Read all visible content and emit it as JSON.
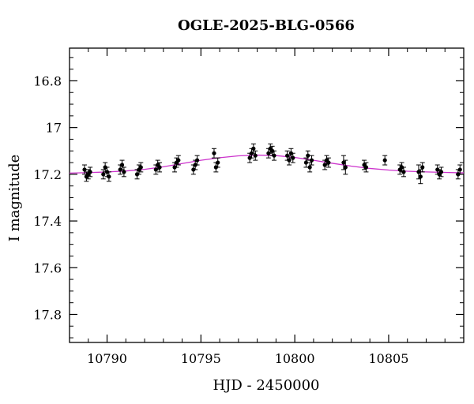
{
  "chart_data": {
    "type": "scatter",
    "title": "OGLE-2025-BLG-0566",
    "xlabel": "HJD - 2450000",
    "ylabel": "I magnitude",
    "xlim": [
      10788,
      10809
    ],
    "ylim": [
      17.92,
      16.66
    ],
    "y_inverted": true,
    "grid": false,
    "x_ticks": [
      10790,
      10795,
      10800,
      10805
    ],
    "x_tick_labels": [
      "10790",
      "10795",
      "10800",
      "10805"
    ],
    "y_ticks": [
      16.8,
      17.0,
      17.2,
      17.4,
      17.6,
      17.8
    ],
    "y_tick_labels": [
      "16.8",
      "17",
      "17.2",
      "17.4",
      "17.6",
      "17.8"
    ],
    "series": [
      {
        "kind": "points",
        "color": "#000000",
        "x": [
          10788.8,
          10788.9,
          10789.0,
          10789.1,
          10789.8,
          10789.9,
          10790.0,
          10790.1,
          10790.7,
          10790.8,
          10790.9,
          10791.6,
          10791.7,
          10791.8,
          10792.6,
          10792.7,
          10792.8,
          10793.6,
          10793.7,
          10793.8,
          10794.6,
          10794.7,
          10794.8,
          10795.7,
          10795.8,
          10795.9,
          10797.6,
          10797.7,
          10797.8,
          10797.9,
          10798.6,
          10798.7,
          10798.8,
          10798.9,
          10799.6,
          10799.7,
          10799.8,
          10799.9,
          10800.6,
          10800.7,
          10800.8,
          10800.9,
          10801.6,
          10801.7,
          10801.8,
          10802.6,
          10802.7,
          10803.7,
          10803.8,
          10804.8,
          10805.6,
          10805.7,
          10805.8,
          10806.6,
          10806.7,
          10806.8,
          10807.6,
          10807.7,
          10807.8,
          10808.7,
          10808.8
        ],
        "y": [
          17.18,
          17.21,
          17.2,
          17.19,
          17.2,
          17.17,
          17.19,
          17.21,
          17.18,
          17.16,
          17.19,
          17.2,
          17.18,
          17.17,
          17.18,
          17.16,
          17.17,
          17.17,
          17.15,
          17.14,
          17.18,
          17.16,
          17.14,
          17.11,
          17.17,
          17.15,
          17.13,
          17.11,
          17.09,
          17.12,
          17.11,
          17.09,
          17.1,
          17.12,
          17.12,
          17.14,
          17.11,
          17.13,
          17.15,
          17.12,
          17.17,
          17.14,
          17.16,
          17.14,
          17.15,
          17.15,
          17.17,
          17.16,
          17.17,
          17.14,
          17.18,
          17.17,
          17.19,
          17.19,
          17.21,
          17.17,
          17.18,
          17.2,
          17.19,
          17.2,
          17.18
        ],
        "yerr": [
          0.02,
          0.02,
          0.02,
          0.02,
          0.02,
          0.02,
          0.02,
          0.02,
          0.02,
          0.02,
          0.02,
          0.02,
          0.02,
          0.02,
          0.02,
          0.02,
          0.02,
          0.02,
          0.02,
          0.02,
          0.02,
          0.02,
          0.02,
          0.02,
          0.02,
          0.02,
          0.02,
          0.02,
          0.02,
          0.02,
          0.02,
          0.02,
          0.02,
          0.02,
          0.02,
          0.02,
          0.02,
          0.02,
          0.02,
          0.02,
          0.02,
          0.02,
          0.02,
          0.02,
          0.02,
          0.03,
          0.03,
          0.02,
          0.02,
          0.02,
          0.02,
          0.02,
          0.02,
          0.03,
          0.03,
          0.02,
          0.02,
          0.02,
          0.02,
          0.02,
          0.02
        ]
      },
      {
        "kind": "line",
        "color": "#cc33cc",
        "x": [
          10788,
          10789,
          10790,
          10791,
          10792,
          10793,
          10794,
          10795,
          10796,
          10797,
          10798,
          10799,
          10800,
          10801,
          10802,
          10803,
          10804,
          10805,
          10806,
          10807,
          10808,
          10809
        ],
        "y": [
          17.195,
          17.193,
          17.19,
          17.186,
          17.179,
          17.168,
          17.154,
          17.14,
          17.129,
          17.121,
          17.118,
          17.12,
          17.128,
          17.14,
          17.153,
          17.165,
          17.175,
          17.182,
          17.187,
          17.19,
          17.192,
          17.194
        ]
      }
    ]
  }
}
